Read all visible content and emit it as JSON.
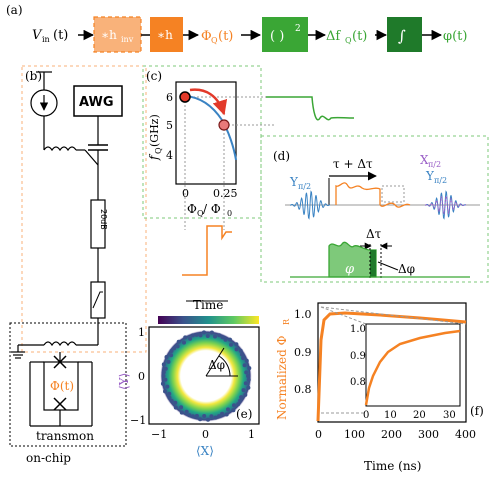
{
  "colors": {
    "orange": "#f58223",
    "orange_light": "#f9b27a",
    "green": "#3aa635",
    "green_dark": "#1f7a2a",
    "green_light": "#7ec97a",
    "blue": "#3a83c3",
    "purple": "#9a5fc7",
    "red": "#e23a2a",
    "grey": "#9a9a9a"
  },
  "panel_a": {
    "label": "(a)",
    "input": "V",
    "input_sub": "in",
    "input_arg": "(t)",
    "block_inv": "∗h",
    "block_inv_sub": "inv",
    "block_h": "∗h",
    "phi_q": "Φ",
    "phi_q_sub": "Q",
    "phi_q_arg": "(t)",
    "square": "( )",
    "square_sup": "2",
    "delta_f": "Δf",
    "delta_f_sub": "Q",
    "delta_f_arg": "(t)",
    "integral": "∫",
    "phi_out": "φ(t)"
  },
  "panel_b": {
    "label": "(b)",
    "awg": "AWG",
    "attenuator": "20dB",
    "phi_t": "Φ(t)",
    "transmon": "transmon",
    "on_chip": "on-chip"
  },
  "panel_c": {
    "label": "(c)",
    "ylabel": "f",
    "ylabel_sub": "Q",
    "ylabel_unit": " (GHz)",
    "xlabel": "Φ",
    "xlabel_sub1": "Q",
    "xlabel_mid": " / Φ",
    "xlabel_sub2": "0",
    "y_ticks": [
      "6",
      "5",
      "4"
    ],
    "x_ticks": [
      "0",
      "0.25"
    ],
    "time_label": "Time"
  },
  "panel_d": {
    "label": "(d)",
    "tau": "τ + Δτ",
    "y_pi2": "Y",
    "y_pi2_sub": "π/2",
    "x_pi2": "X",
    "x_pi2_sub": "π/2",
    "y_pi2_right": "Y",
    "y_pi2_right_sub": "π/2",
    "delta_tau": "Δτ",
    "phi": "φ",
    "delta_phi": "Δφ"
  },
  "panel_e": {
    "label": "(e)",
    "xlabel": "⟨X⟩",
    "ylabel": "⟨Y⟩",
    "x_ticks": [
      "−1",
      "0",
      "1"
    ],
    "y_ticks": [
      "1",
      "0",
      "−1"
    ],
    "delta_phi": "Δφ"
  },
  "panel_f": {
    "label": "(f)",
    "ylabel": "Normalized Φ",
    "ylabel_sub": "R",
    "xlabel": "Time (ns)",
    "y_ticks": [
      "1.0",
      "0.9",
      "0.8"
    ],
    "x_ticks": [
      "0",
      "100",
      "200",
      "300",
      "400"
    ],
    "inset_y_ticks": [
      "1.0",
      "0.9",
      "0.8"
    ],
    "inset_x_ticks": [
      "0",
      "10",
      "20",
      "30"
    ]
  }
}
